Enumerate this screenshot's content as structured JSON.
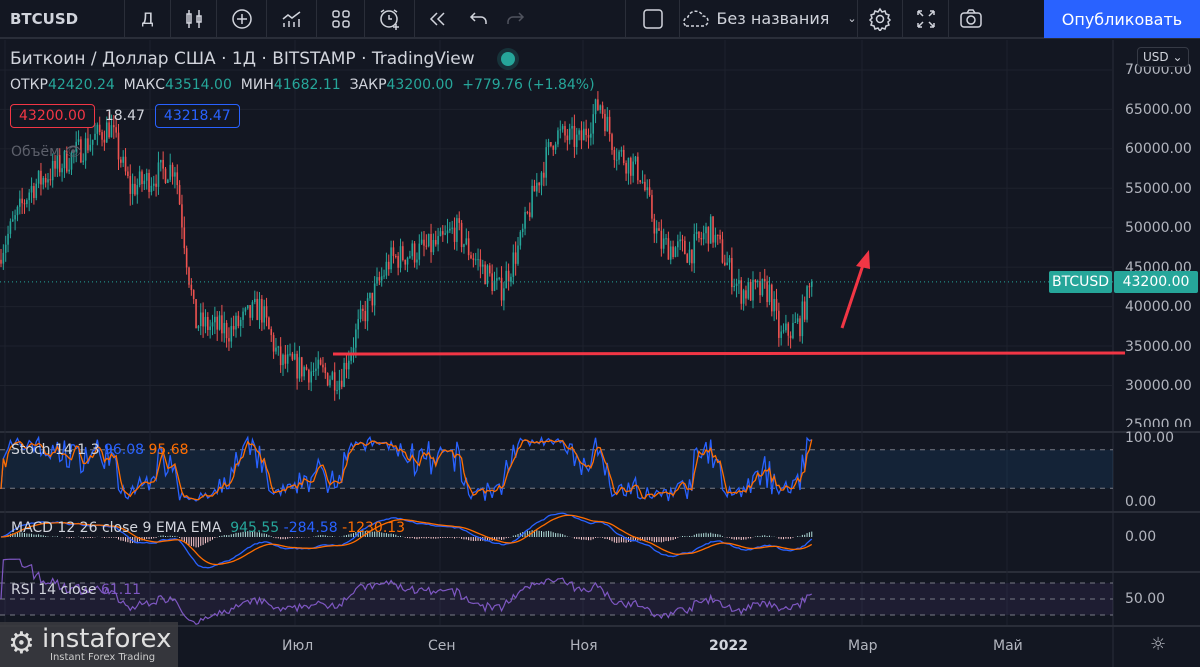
{
  "toolbar": {
    "symbol": "BTCUSD",
    "interval": "Д",
    "layout_name": "Без названия",
    "publish": "Опубликовать",
    "icons": [
      "candles-icon",
      "add-indicator-icon",
      "indicators-icon",
      "templates-icon",
      "alert-icon",
      "replay-icon",
      "undo-icon",
      "redo-icon",
      "square-icon",
      "cloud-icon",
      "chevron-down-icon",
      "gear-icon",
      "fullscreen-icon",
      "camera-icon"
    ]
  },
  "legend": {
    "title": "Биткоин / Доллар США · 1Д · BITSTAMP · TradingView",
    "open_label": "ОТКР",
    "open": "42420.24",
    "high_label": "МАКС",
    "high": "43514.00",
    "low_label": "МИН",
    "low": "41682.11",
    "close_label": "ЗАКР",
    "close": "43200.00",
    "change": "+779.76 (+1.84%)",
    "bid": "43200.00",
    "spread": "18.47",
    "ask": "43218.47",
    "volume_label": "Объём"
  },
  "indicators": {
    "stoch": {
      "label": "Stoch 14 1 3",
      "k": "96.08",
      "d": "95.68"
    },
    "macd": {
      "label": "MACD 12 26 close 9 EMA EMA",
      "hist": "945.55",
      "macd": "-284.58",
      "signal": "-1230.13"
    },
    "rsi": {
      "label": "RSI 14 close",
      "value": "61.11"
    }
  },
  "price_axis": {
    "currency": "USD",
    "ticks": [
      "70000.00",
      "65000.00",
      "60000.00",
      "55000.00",
      "50000.00",
      "45000.00",
      "40000.00",
      "35000.00",
      "30000.00",
      "25000.00"
    ],
    "last_symbol": "BTCUSD",
    "last_price": "43200.00",
    "stoch_ticks": [
      "100.00",
      "0.00"
    ],
    "macd_tick": "0.00",
    "rsi_tick": "50.00"
  },
  "time_axis": {
    "labels": [
      "Июл",
      "Сен",
      "Ноя",
      "2022",
      "Мар",
      "Май"
    ]
  },
  "watermark": {
    "brand": "instaforex",
    "tagline": "Instant Forex Trading"
  },
  "colors": {
    "up": "#26a69a",
    "down": "#ef5350",
    "accent": "#2962ff",
    "drawing": "#f23645"
  }
}
